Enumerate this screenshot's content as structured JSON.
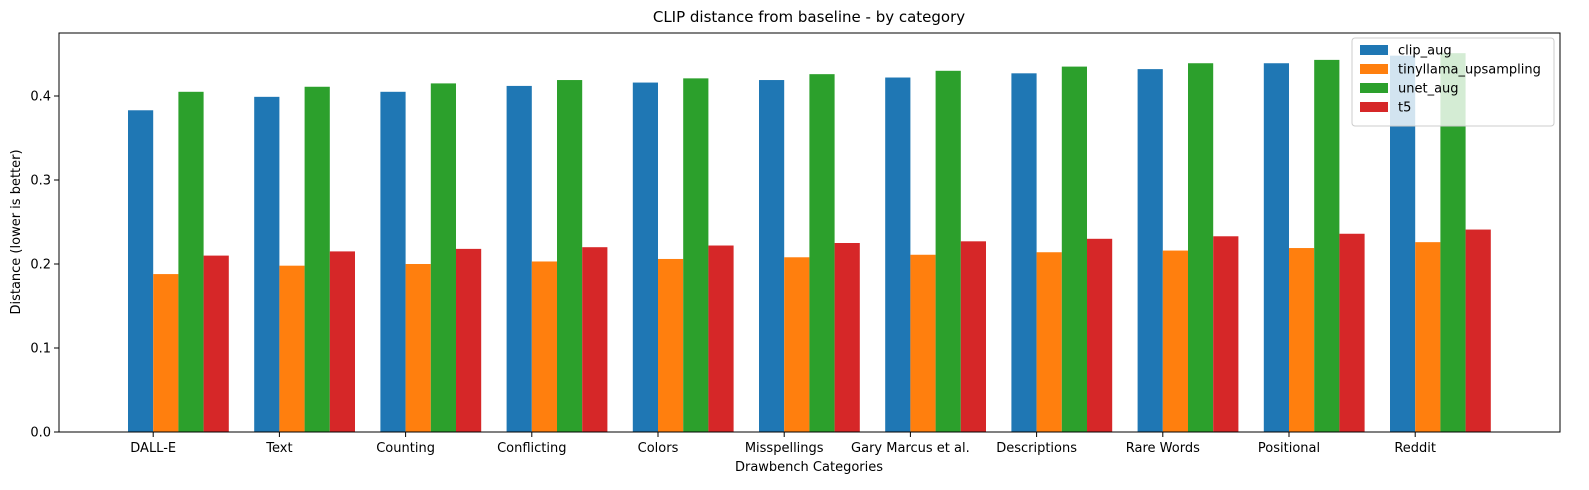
{
  "chart_data": {
    "type": "bar",
    "title": "CLIP distance from baseline - by category",
    "xlabel": "Drawbench Categories",
    "ylabel": "Distance (lower is better)",
    "ylim": [
      0,
      0.475
    ],
    "yticks": [
      "0.0",
      "0.1",
      "0.2",
      "0.3",
      "0.4"
    ],
    "grid": false,
    "legend_position": "top-right",
    "categories": [
      "DALL-E",
      "Text",
      "Counting",
      "Conflicting",
      "Colors",
      "Misspellings",
      "Gary Marcus et al.",
      "Descriptions",
      "Rare Words",
      "Positional",
      "Reddit"
    ],
    "series": [
      {
        "name": "clip_aug",
        "color": "#1f77b4",
        "values": [
          0.383,
          0.399,
          0.405,
          0.412,
          0.416,
          0.419,
          0.422,
          0.427,
          0.432,
          0.439,
          0.448
        ]
      },
      {
        "name": "tinyllama_upsampling",
        "color": "#ff7f0e",
        "values": [
          0.188,
          0.198,
          0.2,
          0.203,
          0.206,
          0.208,
          0.211,
          0.214,
          0.216,
          0.219,
          0.226
        ]
      },
      {
        "name": "unet_aug",
        "color": "#2ca02c",
        "values": [
          0.405,
          0.411,
          0.415,
          0.419,
          0.421,
          0.426,
          0.43,
          0.435,
          0.439,
          0.443,
          0.451
        ]
      },
      {
        "name": "t5",
        "color": "#d62728",
        "values": [
          0.21,
          0.215,
          0.218,
          0.22,
          0.222,
          0.225,
          0.227,
          0.23,
          0.233,
          0.236,
          0.241
        ]
      }
    ]
  }
}
